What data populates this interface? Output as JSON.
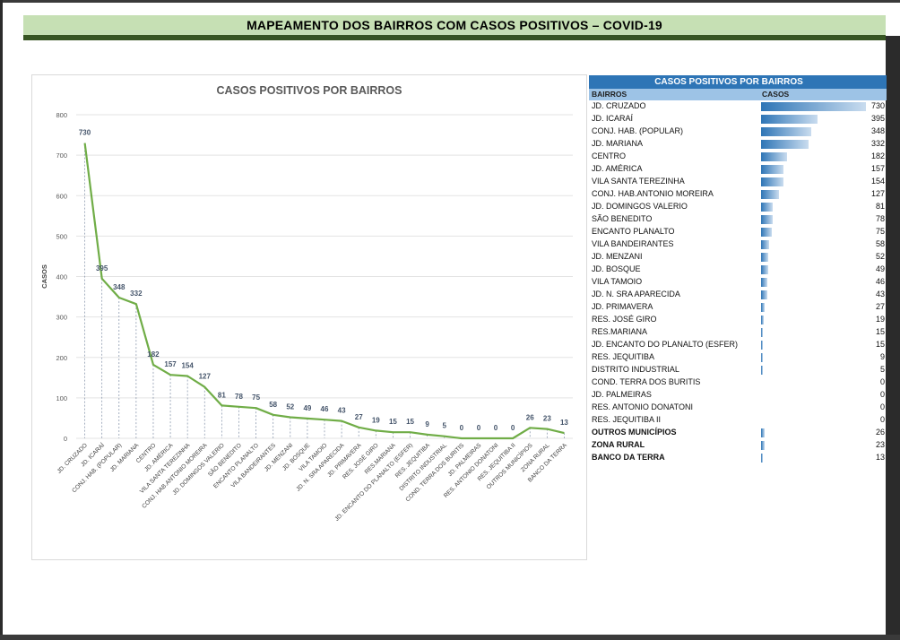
{
  "banner": {
    "title": "MAPEAMENTO DOS BAIRROS COM CASOS POSITIVOS – COVID-19"
  },
  "colors": {
    "line": "#70ad47",
    "bar": "#2e75b6",
    "banner_bg": "#c6e0b4",
    "banner_border": "#375623",
    "table_title_bg": "#2e75b6",
    "table_head_bg": "#9dc3e6"
  },
  "chart_data": {
    "type": "line",
    "title": "CASOS POSITIVOS POR BAIRROS",
    "xlabel": "",
    "ylabel": "CASOS",
    "ylim": [
      0,
      800
    ],
    "yticks": [
      0,
      100,
      200,
      300,
      400,
      500,
      600,
      700,
      800
    ],
    "grid": true,
    "categories": [
      "JD. CRUZADO",
      "JD. ICARAÍ",
      "CONJ. HAB. (POPULAR)",
      "JD. MARIANA",
      "CENTRO",
      "JD. AMÉRICA",
      "VILA SANTA TEREZINHA",
      "CONJ. HAB.ANTONIO MOREIRA",
      "JD. DOMINGOS VALERIO",
      "SÃO BENEDITO",
      "ENCANTO PLANALTO",
      "VILA BANDEIRANTES",
      "JD. MENZANI",
      "JD. BOSQUE",
      "VILA TAMOIO",
      "JD. N. SRA APARECIDA",
      "JD. PRIMAVERA",
      "RES. JOSÉ GIRO",
      "RES.MARIANA",
      "JD. ENCANTO DO PLANALTO (ESFER)",
      "RES. JEQUITIBA",
      "DISTRITO INDUSTRIAL",
      "COND. TERRA DOS BURITIS",
      "JD. PALMEIRAS",
      "RES. ANTONIO DONATONI",
      "RES. JEQUITIBA II",
      "OUTROS MUNICÍPIOS",
      "ZONA RURAL",
      "BANCO DA TERRA"
    ],
    "values": [
      730,
      395,
      348,
      332,
      182,
      157,
      154,
      127,
      81,
      78,
      75,
      58,
      52,
      49,
      46,
      43,
      27,
      19,
      15,
      15,
      9,
      5,
      0,
      0,
      0,
      0,
      26,
      23,
      13
    ]
  },
  "table": {
    "title": "CASOS POSITIVOS POR BAIRROS",
    "col_bairros": "BAIRROS",
    "col_casos": "CASOS",
    "rows": [
      {
        "name": "JD. CRUZADO",
        "value": 730
      },
      {
        "name": "JD. ICARAÍ",
        "value": 395
      },
      {
        "name": "CONJ. HAB. (POPULAR)",
        "value": 348
      },
      {
        "name": "JD. MARIANA",
        "value": 332
      },
      {
        "name": "CENTRO",
        "value": 182
      },
      {
        "name": "JD. AMÉRICA",
        "value": 157
      },
      {
        "name": "VILA SANTA TEREZINHA",
        "value": 154
      },
      {
        "name": "CONJ. HAB.ANTONIO MOREIRA",
        "value": 127
      },
      {
        "name": "JD. DOMINGOS VALERIO",
        "value": 81
      },
      {
        "name": "SÃO BENEDITO",
        "value": 78
      },
      {
        "name": "ENCANTO PLANALTO",
        "value": 75
      },
      {
        "name": "VILA BANDEIRANTES",
        "value": 58
      },
      {
        "name": "JD. MENZANI",
        "value": 52
      },
      {
        "name": "JD. BOSQUE",
        "value": 49
      },
      {
        "name": "VILA TAMOIO",
        "value": 46
      },
      {
        "name": "JD. N. SRA APARECIDA",
        "value": 43
      },
      {
        "name": "JD. PRIMAVERA",
        "value": 27
      },
      {
        "name": "RES. JOSÉ GIRO",
        "value": 19
      },
      {
        "name": "RES.MARIANA",
        "value": 15
      },
      {
        "name": "JD. ENCANTO DO PLANALTO (ESFER)",
        "value": 15
      },
      {
        "name": "RES. JEQUITIBA",
        "value": 9
      },
      {
        "name": "DISTRITO INDUSTRIAL",
        "value": 5
      },
      {
        "name": "COND. TERRA DOS BURITIS",
        "value": 0
      },
      {
        "name": "JD. PALMEIRAS",
        "value": 0
      },
      {
        "name": "RES. ANTONIO DONATONI",
        "value": 0
      },
      {
        "name": "RES. JEQUITIBA II",
        "value": 0
      },
      {
        "name": "OUTROS MUNICÍPIOS",
        "value": 26,
        "bold": true
      },
      {
        "name": "ZONA RURAL",
        "value": 23,
        "bold": true
      },
      {
        "name": "BANCO DA TERRA",
        "value": 13,
        "bold": true
      }
    ]
  }
}
